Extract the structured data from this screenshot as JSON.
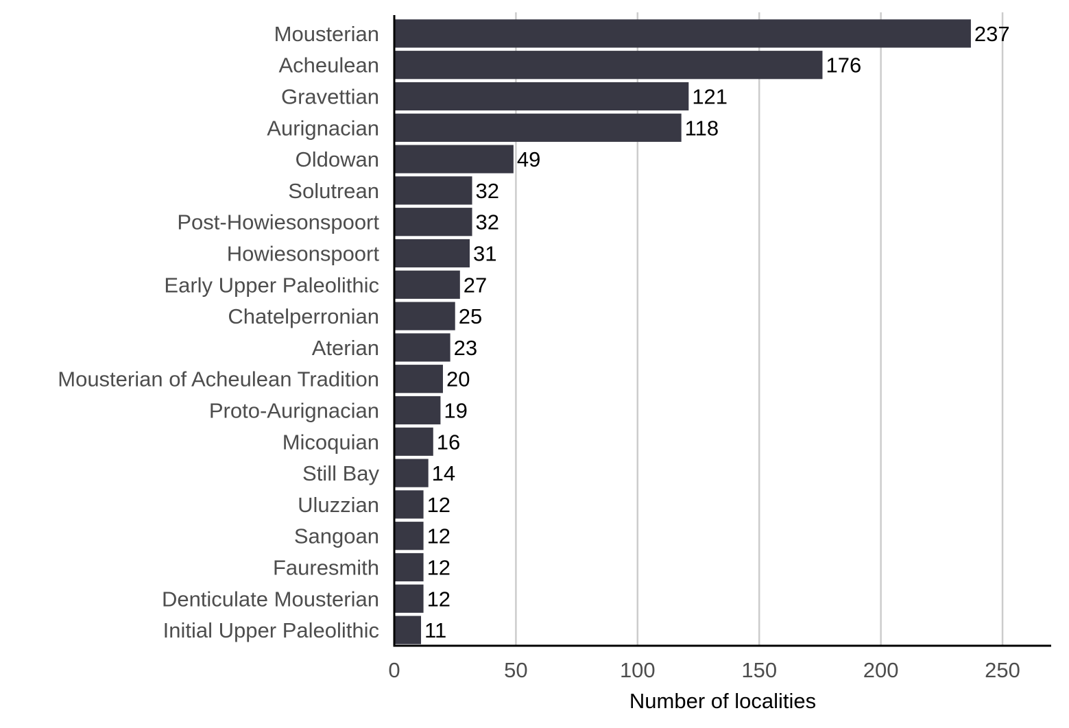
{
  "chart_data": {
    "type": "bar",
    "orientation": "horizontal",
    "categories": [
      "Mousterian",
      "Acheulean",
      "Gravettian",
      "Aurignacian",
      "Oldowan",
      "Solutrean",
      "Post-Howiesonspoort",
      "Howiesonspoort",
      "Early Upper Paleolithic",
      "Chatelperronian",
      "Aterian",
      "Mousterian of Acheulean Tradition",
      "Proto-Aurignacian",
      "Micoquian",
      "Still Bay",
      "Uluzzian",
      "Sangoan",
      "Fauresmith",
      "Denticulate Mousterian",
      "Initial Upper Paleolithic"
    ],
    "values": [
      237,
      176,
      121,
      118,
      49,
      32,
      32,
      31,
      27,
      25,
      23,
      20,
      19,
      16,
      14,
      12,
      12,
      12,
      12,
      11
    ],
    "data_labels": [
      "237",
      "176",
      "121",
      "118",
      "49",
      "32",
      "32",
      "31",
      "27",
      "25",
      "23",
      "20",
      "19",
      "16",
      "14",
      "12",
      "12",
      "12",
      "12",
      "11"
    ],
    "xlabel": "Number of localities",
    "ylabel": "",
    "xlim": [
      0,
      270
    ],
    "x_ticks": [
      0,
      50,
      100,
      150,
      200,
      250
    ],
    "x_tick_labels": [
      "0",
      "50",
      "100",
      "150",
      "200",
      "250"
    ],
    "grid": "vertical major gridlines",
    "legend": "none",
    "colors": {
      "bar": "#383844",
      "grid": "#cccccc",
      "axis": "#000000",
      "category_text": "#4d4d4d",
      "data_label_text": "#000000"
    }
  }
}
